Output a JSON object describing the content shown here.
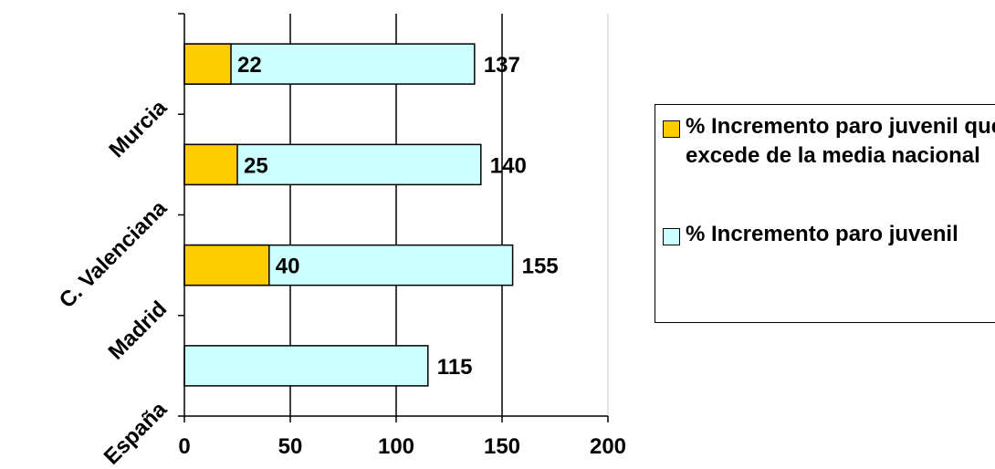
{
  "chart_data": {
    "type": "bar",
    "orientation": "horizontal",
    "stacked": false,
    "categories": [
      "España",
      "Madrid",
      "C. Valenciana",
      "Murcia"
    ],
    "series": [
      {
        "name": "% Incremento paro juvenil",
        "values": [
          115,
          155,
          140,
          137
        ],
        "color": "#ccffff"
      },
      {
        "name": "% Incremento paro juvenil que excede de la media nacional",
        "values": [
          null,
          40,
          25,
          22
        ],
        "color": "#ffcc00"
      }
    ],
    "xlim": [
      0,
      200
    ],
    "xticks": [
      0,
      50,
      100,
      150,
      200
    ],
    "grid": true,
    "legend_position": "right"
  }
}
